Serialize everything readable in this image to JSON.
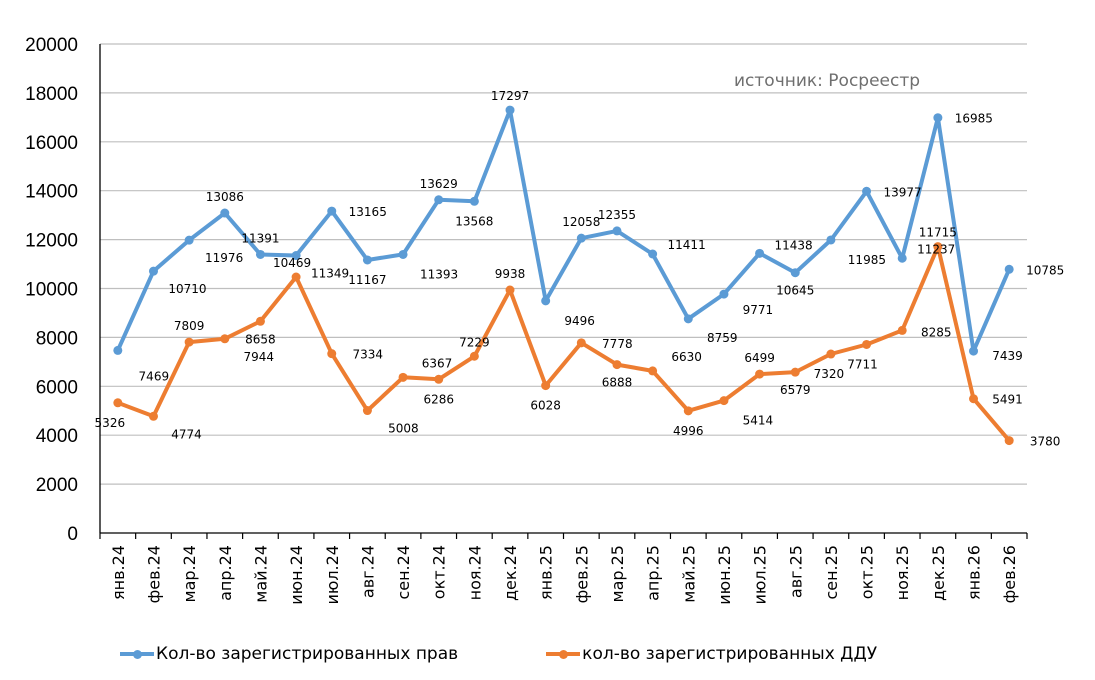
{
  "chart_data": {
    "type": "line",
    "title": "",
    "annotation": "источник: Росреестр",
    "xlabel": "",
    "ylabel": "",
    "ylim": [
      0,
      20000
    ],
    "yticks": [
      "0",
      "2000",
      "4000",
      "6000",
      "8000",
      "10000",
      "12000",
      "14000",
      "16000",
      "18000",
      "20000"
    ],
    "grid": true,
    "legend_position": "bottom",
    "categories": [
      "янв.24",
      "фев.24",
      "мар.24",
      "апр.24",
      "май.24",
      "июн.24",
      "июл.24",
      "авг.24",
      "сен.24",
      "окт.24",
      "ноя.24",
      "дек.24",
      "янв.25",
      "фев.25",
      "мар.25",
      "апр.25",
      "май.25",
      "июн.25",
      "июл.25",
      "авг.25",
      "сен.25",
      "окт.25",
      "ноя.25",
      "дек.25",
      "янв.26",
      "фев.26"
    ],
    "series": [
      {
        "name": "Кол-во зарегистрированных прав",
        "color": "#5b9bd5",
        "values": [
          7469,
          10710,
          11976,
          13086,
          11391,
          11349,
          13165,
          11167,
          11393,
          13629,
          13568,
          17297,
          9496,
          12058,
          12355,
          11411,
          8759,
          9771,
          11438,
          10645,
          11985,
          13977,
          11237,
          16985,
          7439,
          10785
        ],
        "labels": [
          "7469",
          "10710",
          "11976",
          "13086",
          "11391",
          "11349",
          "13165",
          "11167",
          "11393",
          "13629",
          "13568",
          "17297",
          "9496",
          "12058",
          "12355",
          "11411",
          "8759",
          "9771",
          "11438",
          "10645",
          "11985",
          "13977",
          "11237",
          "16985",
          "7439",
          "10785"
        ]
      },
      {
        "name": "кол-во зарегистрированных ДДУ",
        "color": "#ed7d31",
        "values": [
          5326,
          4774,
          7809,
          7944,
          8658,
          10469,
          7334,
          5008,
          6367,
          6286,
          7229,
          9938,
          6028,
          7778,
          6888,
          6630,
          4996,
          5414,
          6499,
          6579,
          7320,
          7711,
          8285,
          11715,
          5491,
          3780
        ],
        "labels": [
          "5326",
          "4774",
          "7809",
          "7944",
          "8658",
          "10469",
          "7334",
          "5008",
          "6367",
          "6286",
          "7229",
          "9938",
          "6028",
          "7778",
          "6888",
          "6630",
          "4996",
          "5414",
          "6499",
          "6579",
          "7320",
          "7711",
          "8285",
          "11715",
          "5491",
          "3780"
        ]
      }
    ]
  }
}
